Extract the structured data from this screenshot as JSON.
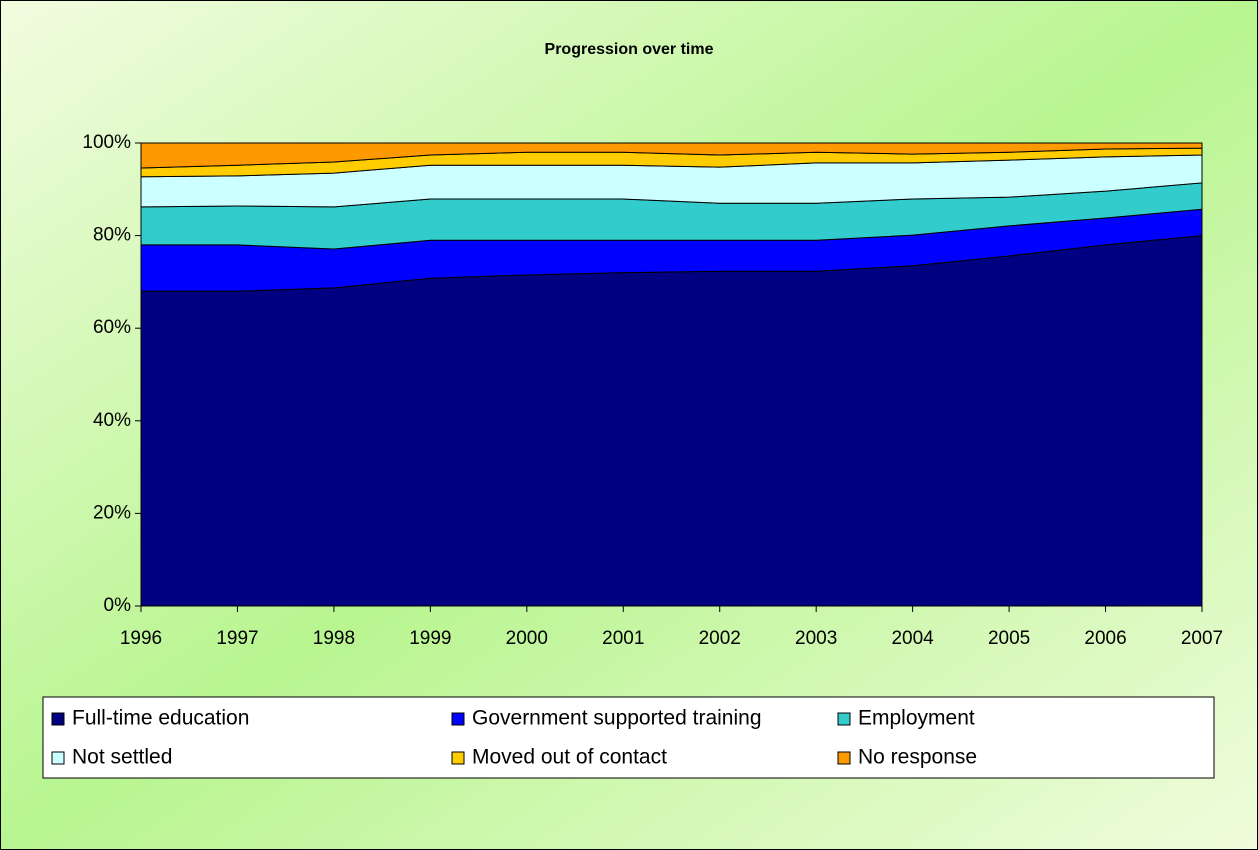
{
  "chart_data": {
    "type": "stacked-area",
    "title": "Progression over time",
    "categories": [
      "1996",
      "1997",
      "1998",
      "1999",
      "2000",
      "2001",
      "2002",
      "2003",
      "2004",
      "2005",
      "2006",
      "2007"
    ],
    "series": [
      {
        "name": "Full-time education",
        "color": "#000080",
        "values": [
          68,
          68,
          68.7,
          70.8,
          71.5,
          72,
          72.3,
          72.3,
          73.5,
          75.6,
          78,
          80
        ]
      },
      {
        "name": "Government supported training",
        "color": "#0000ff",
        "values": [
          10,
          10,
          8.4,
          8.2,
          7.5,
          7,
          6.7,
          6.7,
          6.6,
          6.5,
          5.8,
          5.7
        ]
      },
      {
        "name": "Employment",
        "color": "#33cccc",
        "values": [
          8.2,
          8.4,
          9.1,
          8.9,
          8.9,
          8.9,
          8,
          8,
          7.8,
          6.2,
          5.8,
          5.7
        ]
      },
      {
        "name": "Not settled",
        "color": "#ccffff",
        "values": [
          6.5,
          6.5,
          7.3,
          7.3,
          7.3,
          7.3,
          7.8,
          8.7,
          7.8,
          8,
          7.4,
          6
        ]
      },
      {
        "name": "Moved out of contact",
        "color": "#ffcc00",
        "values": [
          1.9,
          2.3,
          2.4,
          2.2,
          2.8,
          2.8,
          2.6,
          2.3,
          1.9,
          1.7,
          1.7,
          1.5
        ]
      },
      {
        "name": "No response",
        "color": "#ff9900",
        "values": [
          5.4,
          4.8,
          4.1,
          2.6,
          2,
          2,
          2.6,
          2,
          2.4,
          2,
          1.3,
          1.1
        ]
      }
    ],
    "ylim": [
      0,
      100
    ],
    "yticks": [
      {
        "value": 0,
        "label": "0%"
      },
      {
        "value": 20,
        "label": "20%"
      },
      {
        "value": 40,
        "label": "40%"
      },
      {
        "value": 60,
        "label": "60%"
      },
      {
        "value": 80,
        "label": "80%"
      },
      {
        "value": 100,
        "label": "100%"
      }
    ],
    "legend": "bottom"
  }
}
